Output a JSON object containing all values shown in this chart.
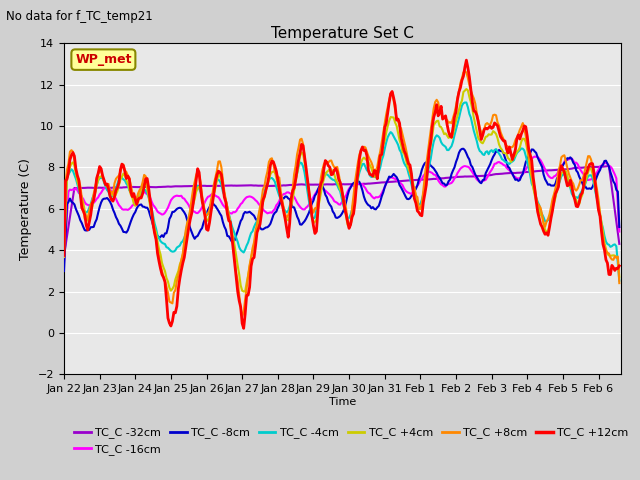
{
  "title": "Temperature Set C",
  "subtitle": "No data for f_TC_temp21",
  "xlabel": "Time",
  "ylabel": "Temperature (C)",
  "ylim": [
    -2,
    14
  ],
  "yticks": [
    -2,
    0,
    2,
    4,
    6,
    8,
    10,
    12,
    14
  ],
  "xlim": [
    0,
    375
  ],
  "xtick_labels": [
    "Jan 22",
    "Jan 23",
    "Jan 24",
    "Jan 25",
    "Jan 26",
    "Jan 27",
    "Jan 28",
    "Jan 29",
    "Jan 30",
    "Jan 31",
    "Feb 1",
    "Feb 2",
    "Feb 3",
    "Feb 4",
    "Feb 5",
    "Feb 6"
  ],
  "xtick_positions": [
    0,
    24,
    48,
    72,
    96,
    120,
    144,
    168,
    192,
    216,
    240,
    264,
    288,
    312,
    336,
    360
  ],
  "legend_entries": [
    "TC_C -32cm",
    "TC_C -16cm",
    "TC_C -8cm",
    "TC_C -4cm",
    "TC_C +4cm",
    "TC_C +8cm",
    "TC_C +12cm"
  ],
  "line_colors": [
    "#9900cc",
    "#ff00ff",
    "#0000cc",
    "#00cccc",
    "#cccc00",
    "#ff8800",
    "#ff0000"
  ],
  "line_widths": [
    1.5,
    1.5,
    1.5,
    1.5,
    1.5,
    1.5,
    2.0
  ],
  "wp_met_label": "WP_met",
  "wp_met_color": "#cc0000",
  "wp_met_bg": "#ffff99",
  "bg_color": "#e8e8e8",
  "grid_color": "#ffffff",
  "n_points": 375
}
